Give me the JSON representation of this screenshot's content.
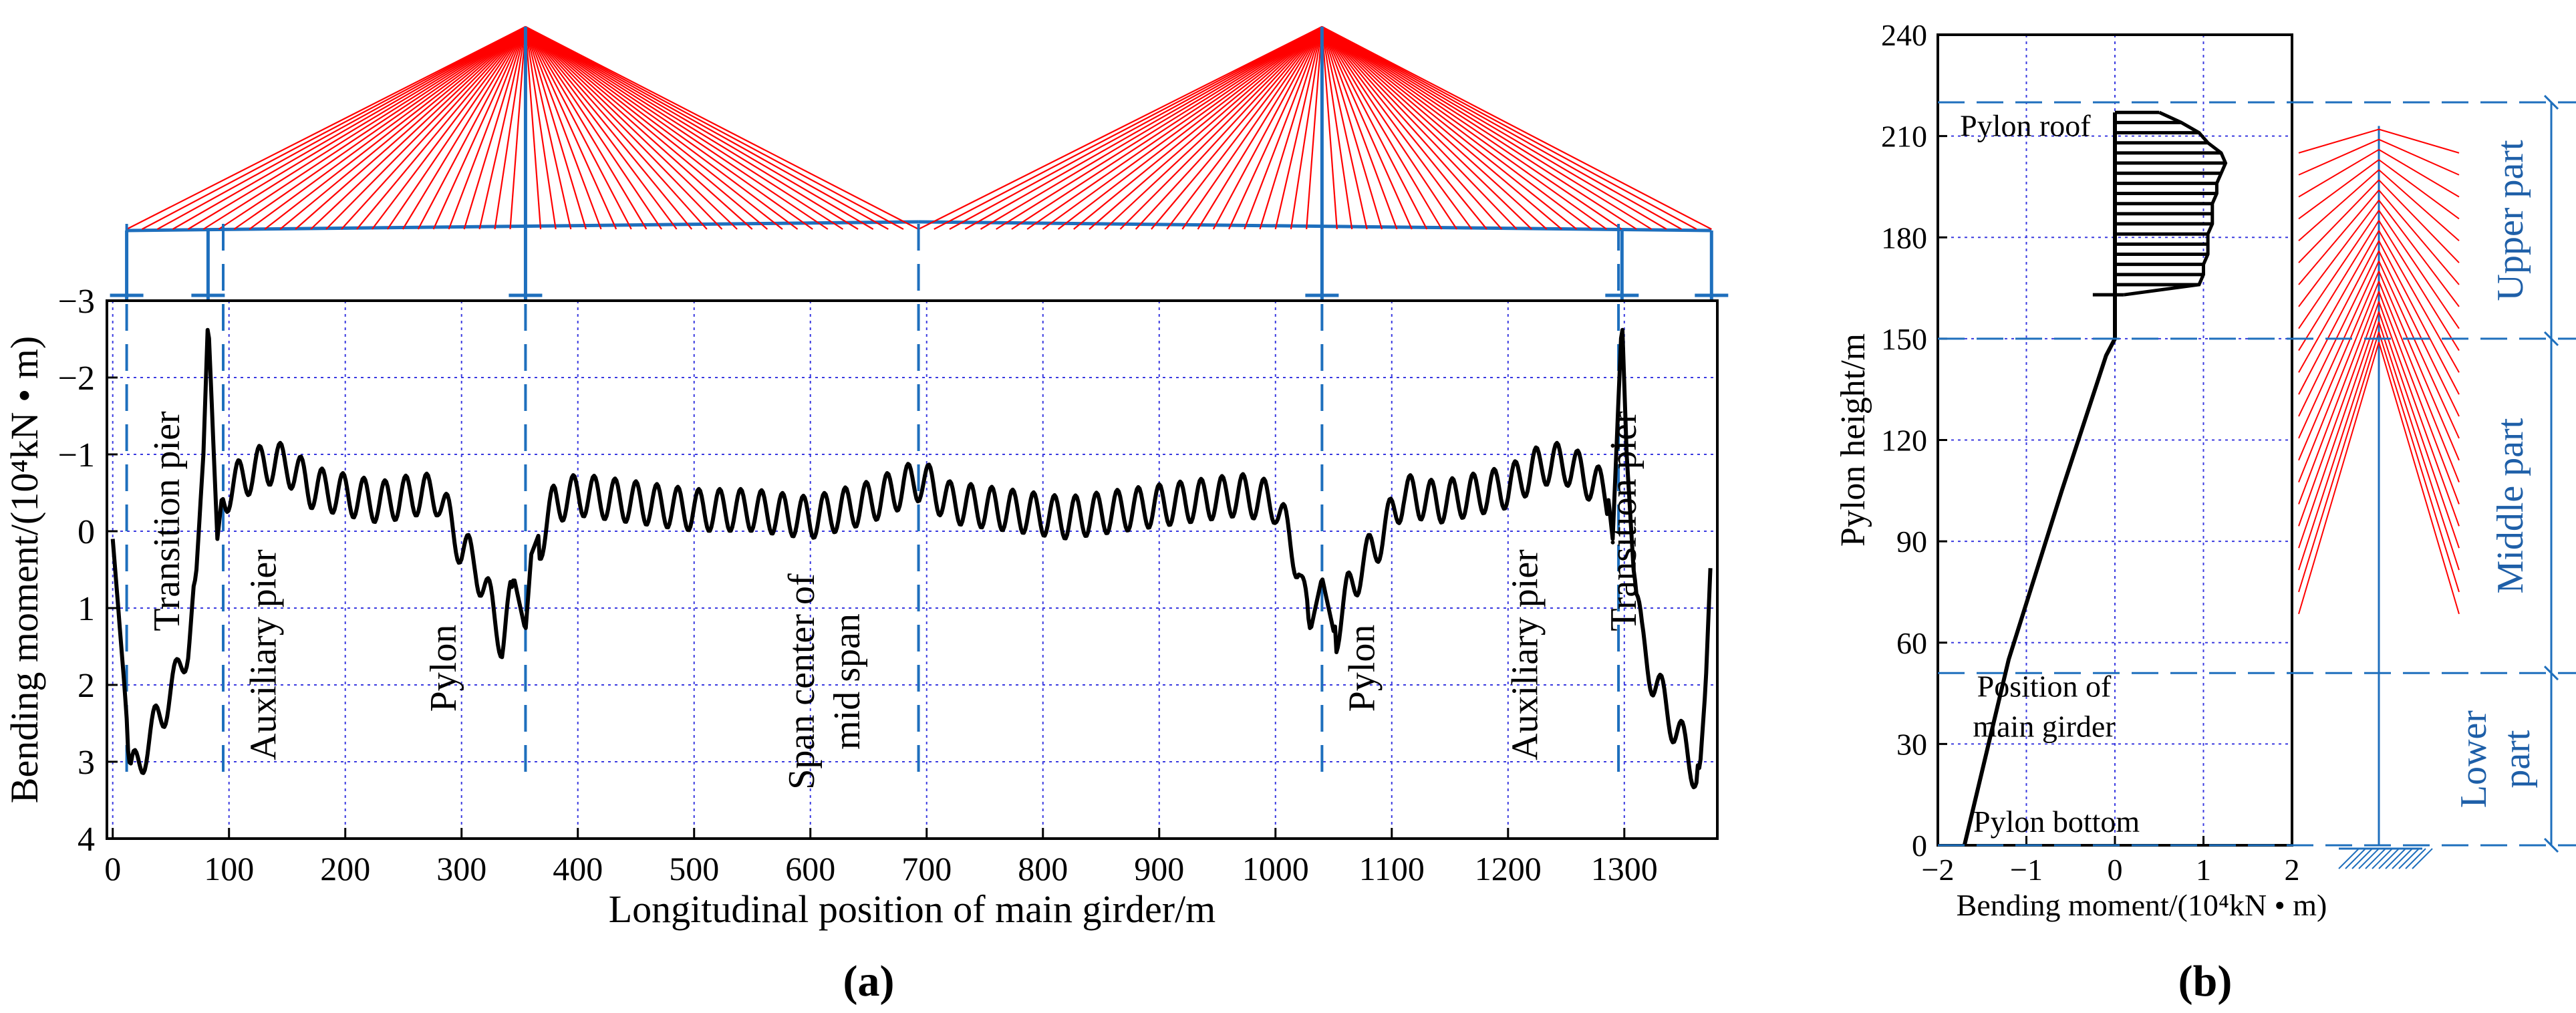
{
  "colors": {
    "curve": "#000000",
    "grid": "#3a3ae0",
    "cable": "#ff0000",
    "structure": "#1e6fbd",
    "annotation": "#1e5fa8",
    "axis": "#000000"
  },
  "panel_labels": [
    "(a)",
    "(b)"
  ],
  "chart_data": [
    {
      "id": "a",
      "type": "line",
      "panel_label": "(a)",
      "xlabel": "Longitudinal position of main girder/m",
      "ylabel": "Bending moment/(10⁴kN • m)",
      "xlim": [
        -5,
        1380
      ],
      "ylim": [
        -3,
        4
      ],
      "y_inverted": true,
      "grid": true,
      "x_ticks": [
        0,
        100,
        200,
        300,
        400,
        500,
        600,
        700,
        800,
        900,
        1000,
        1100,
        1200,
        1300
      ],
      "x_tick_labels": [
        "0",
        "100",
        "200",
        "300",
        "400",
        "500",
        "600",
        "700",
        "800",
        "900",
        "1000",
        "1100",
        "1200",
        "1300"
      ],
      "y_ticks": [
        -3,
        -2,
        -1,
        0,
        1,
        2,
        3,
        4
      ],
      "y_tick_labels": [
        "−3",
        "−2",
        "−1",
        "0",
        "1",
        "2",
        "3",
        "4"
      ],
      "envelope_points": [
        [
          0,
          0.1
        ],
        [
          10,
          2.0
        ],
        [
          15,
          3.1
        ],
        [
          25,
          2.8
        ],
        [
          40,
          2.3
        ],
        [
          55,
          1.8
        ],
        [
          65,
          1.3
        ],
        [
          72,
          0.5
        ],
        [
          78,
          -1.0
        ],
        [
          82,
          -2.8
        ],
        [
          90,
          0.1
        ],
        [
          95,
          -0.6
        ],
        [
          110,
          -0.8
        ],
        [
          130,
          -1.0
        ],
        [
          150,
          -1.0
        ],
        [
          170,
          -0.7
        ],
        [
          200,
          -0.6
        ],
        [
          230,
          -0.5
        ],
        [
          260,
          -0.6
        ],
        [
          280,
          -0.6
        ],
        [
          300,
          0.1
        ],
        [
          312,
          0.3
        ],
        [
          322,
          0.7
        ],
        [
          335,
          1.3
        ],
        [
          345,
          0.6
        ],
        [
          355,
          1.3
        ],
        [
          360,
          0.3
        ],
        [
          380,
          -0.5
        ],
        [
          400,
          -0.6
        ],
        [
          450,
          -0.5
        ],
        [
          500,
          -0.4
        ],
        [
          550,
          -0.4
        ],
        [
          600,
          -0.3
        ],
        [
          650,
          -0.5
        ],
        [
          680,
          -0.7
        ],
        [
          695,
          -0.8
        ],
        [
          720,
          -0.5
        ],
        [
          770,
          -0.4
        ],
        [
          820,
          -0.3
        ],
        [
          870,
          -0.4
        ],
        [
          920,
          -0.5
        ],
        [
          970,
          -0.6
        ],
        [
          1000,
          -0.5
        ],
        [
          1020,
          0.3
        ],
        [
          1030,
          1.3
        ],
        [
          1040,
          0.6
        ],
        [
          1050,
          1.3
        ],
        [
          1062,
          0.7
        ],
        [
          1075,
          0.3
        ],
        [
          1085,
          0.1
        ],
        [
          1110,
          -0.6
        ],
        [
          1140,
          -0.5
        ],
        [
          1170,
          -0.6
        ],
        [
          1200,
          -0.7
        ],
        [
          1230,
          -1.0
        ],
        [
          1250,
          -1.0
        ],
        [
          1270,
          -0.8
        ],
        [
          1285,
          -0.6
        ],
        [
          1290,
          0.1
        ],
        [
          1298,
          -2.8
        ],
        [
          1302,
          -1.0
        ],
        [
          1308,
          0.5
        ],
        [
          1315,
          1.3
        ],
        [
          1325,
          1.8
        ],
        [
          1340,
          2.3
        ],
        [
          1355,
          2.8
        ],
        [
          1365,
          3.1
        ],
        [
          1370,
          2.0
        ],
        [
          1375,
          0.1
        ]
      ],
      "annotations": [
        "Transition pier",
        "Auxiliary pier",
        "Pylon",
        "Span center of mid span",
        "Pylon",
        "Auxiliary pier",
        "Transition pier"
      ],
      "annotation_x": [
        12,
        95,
        355,
        693,
        1040,
        1295,
        1365
      ],
      "dashed_lines_x": [
        12,
        95,
        355,
        693,
        1040,
        1295
      ]
    },
    {
      "id": "b",
      "type": "line",
      "panel_label": "(b)",
      "xlabel": "Bending moment/(10⁴kN • m)",
      "ylabel": "Pylon height/m",
      "xlim": [
        -2,
        2
      ],
      "ylim": [
        0,
        240
      ],
      "grid": true,
      "x_ticks": [
        -2,
        -1,
        0,
        1,
        2
      ],
      "x_tick_labels": [
        "−2",
        "−1",
        "0",
        "1",
        "2"
      ],
      "y_ticks": [
        0,
        30,
        60,
        90,
        120,
        150,
        180,
        210,
        240
      ],
      "y_tick_labels": [
        "0",
        "30",
        "60",
        "90",
        "120",
        "150",
        "180",
        "210",
        "240"
      ],
      "series": [
        {
          "name": "pylon-moment",
          "points": [
            [
              -1.7,
              0
            ],
            [
              -1.2,
              55
            ],
            [
              -0.6,
              105
            ],
            [
              -0.1,
              145
            ],
            [
              0.0,
              150
            ]
          ]
        }
      ],
      "branch_levels": [
        163,
        166,
        169,
        172,
        175,
        178,
        181,
        184,
        187,
        190,
        193,
        196,
        199,
        202,
        205,
        208,
        211,
        214,
        217
      ],
      "branch_right_values": [
        0.1,
        0.95,
        1.0,
        1.0,
        1.05,
        1.05,
        1.05,
        1.1,
        1.1,
        1.1,
        1.15,
        1.15,
        1.2,
        1.25,
        1.2,
        1.05,
        0.95,
        0.75,
        0.5
      ],
      "branch_left_value": 0.0,
      "upper_cap": [
        -0.25,
        163
      ],
      "annotations": [
        "Pylon roof",
        "Position of main girder",
        "Pylon bottom"
      ],
      "annotation_lines": {
        "roof": [
          "Pylon roof"
        ],
        "girder": [
          "Position of",
          "main girder"
        ],
        "bottom": [
          "Pylon bottom"
        ]
      },
      "part_labels": [
        "Upper part",
        "Middle part",
        "Lower part"
      ],
      "part_lines": {
        "upper": [
          "Upper part"
        ],
        "middle": [
          "Middle part"
        ],
        "lower": [
          "Lower",
          "part"
        ]
      },
      "level_markers_m": [
        0,
        51,
        150,
        220
      ]
    }
  ]
}
